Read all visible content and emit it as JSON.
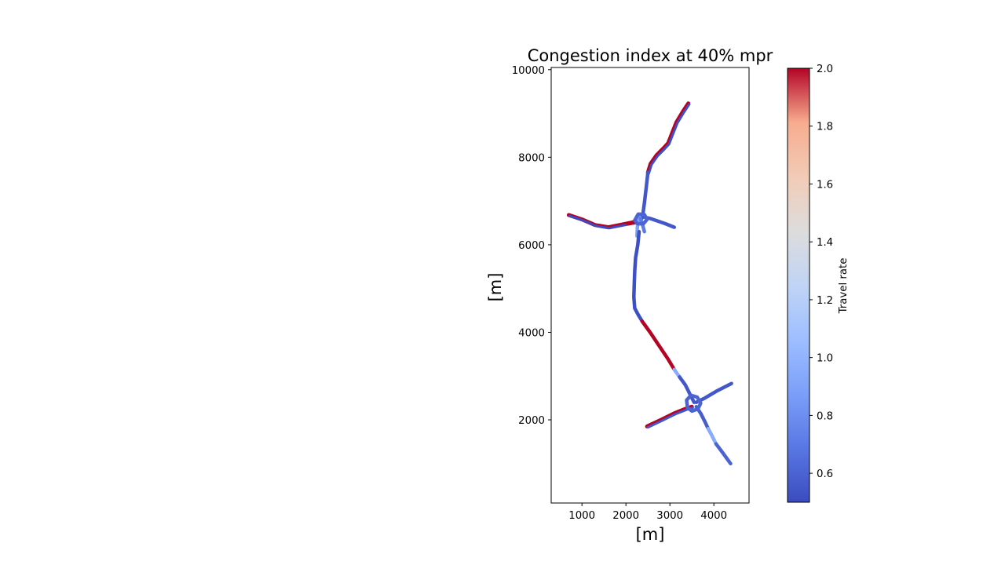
{
  "chart_data": {
    "type": "network-map",
    "title": "Congestion index at 40% mpr",
    "xlabel": "[m]",
    "ylabel": "[m]",
    "xlim": [
      300,
      4800
    ],
    "ylim": [
      100,
      10050
    ],
    "xticks": [
      1000,
      2000,
      3000,
      4000
    ],
    "yticks": [
      2000,
      4000,
      6000,
      8000,
      10000
    ],
    "grid": false,
    "colorbar": {
      "label": "Travel rate",
      "colormap": "coolwarm",
      "min": 0.5,
      "max": 2.0,
      "ticks": [
        0.6,
        0.8,
        1.0,
        1.2,
        1.4,
        1.6,
        1.8,
        2.0
      ],
      "tick_labels": [
        "0.6",
        "0.8",
        "1.0",
        "1.2",
        "1.4",
        "1.6",
        "1.8",
        "2.0"
      ]
    },
    "links": [
      {
        "points": [
          [
            3420,
            9230
          ],
          [
            3300,
            9050
          ],
          [
            3150,
            8800
          ],
          [
            3050,
            8550
          ],
          [
            2960,
            8320
          ],
          [
            2850,
            8200
          ],
          [
            2700,
            8050
          ],
          [
            2560,
            7850
          ],
          [
            2500,
            7650
          ]
        ],
        "value": 0.52,
        "edge_value": 2.0
      },
      {
        "points": [
          [
            2500,
            7650
          ],
          [
            2460,
            7300
          ],
          [
            2420,
            6950
          ],
          [
            2390,
            6720
          ],
          [
            2360,
            6600
          ]
        ],
        "value": 0.55
      },
      {
        "points": [
          [
            700,
            6680
          ],
          [
            1000,
            6580
          ],
          [
            1300,
            6450
          ],
          [
            1600,
            6400
          ],
          [
            1850,
            6450
          ],
          [
            2100,
            6500
          ],
          [
            2300,
            6550
          ]
        ],
        "value": 0.5,
        "edge_value": 2.0
      },
      {
        "points": [
          [
            2050,
            6480
          ],
          [
            2300,
            6520
          ]
        ],
        "value": 2.0
      },
      {
        "points": [
          [
            2380,
            6640
          ],
          [
            2550,
            6600
          ],
          [
            2700,
            6550
          ],
          [
            2900,
            6480
          ],
          [
            3100,
            6400
          ]
        ],
        "value": 0.55
      },
      {
        "points": [
          [
            2320,
            6700
          ],
          [
            2280,
            6550
          ],
          [
            2260,
            6400
          ],
          [
            2250,
            6200
          ]
        ],
        "value": 0.9
      },
      {
        "points": [
          [
            2330,
            6600
          ],
          [
            2380,
            6450
          ],
          [
            2420,
            6300
          ]
        ],
        "value": 0.7
      },
      {
        "points": [
          [
            2300,
            6300
          ],
          [
            2270,
            6000
          ],
          [
            2220,
            5700
          ],
          [
            2200,
            5400
          ],
          [
            2190,
            5100
          ],
          [
            2180,
            4800
          ],
          [
            2200,
            4550
          ],
          [
            2280,
            4400
          ],
          [
            2370,
            4250
          ]
        ],
        "value": 0.52
      },
      {
        "points": [
          [
            2370,
            4250
          ],
          [
            2550,
            4000
          ],
          [
            2750,
            3700
          ],
          [
            2950,
            3400
          ],
          [
            3100,
            3150
          ]
        ],
        "value": 2.0
      },
      {
        "points": [
          [
            3100,
            3150
          ],
          [
            3220,
            2980
          ]
        ],
        "value": 0.95
      },
      {
        "points": [
          [
            3220,
            2980
          ],
          [
            3350,
            2800
          ],
          [
            3450,
            2600
          ],
          [
            3550,
            2400
          ]
        ],
        "value": 0.55
      },
      {
        "points": [
          [
            2480,
            1850
          ],
          [
            2800,
            2000
          ],
          [
            3100,
            2150
          ],
          [
            3350,
            2250
          ],
          [
            3500,
            2300
          ]
        ],
        "value": 0.55,
        "edge_value": 2.0
      },
      {
        "points": [
          [
            3600,
            2400
          ],
          [
            3800,
            2500
          ],
          [
            4050,
            2650
          ],
          [
            4400,
            2830
          ]
        ],
        "value": 0.55
      },
      {
        "points": [
          [
            3600,
            2300
          ],
          [
            3700,
            2150
          ],
          [
            3800,
            1950
          ],
          [
            3870,
            1800
          ]
        ],
        "value": 0.58
      },
      {
        "points": [
          [
            3870,
            1800
          ],
          [
            3950,
            1650
          ],
          [
            4050,
            1450
          ]
        ],
        "value": 0.95
      },
      {
        "points": [
          [
            4050,
            1450
          ],
          [
            4200,
            1250
          ],
          [
            4380,
            1000
          ]
        ],
        "value": 0.6
      },
      {
        "points": [
          [
            3380,
            2450
          ],
          [
            3480,
            2560
          ],
          [
            3620,
            2520
          ],
          [
            3700,
            2380
          ],
          [
            3640,
            2250
          ],
          [
            3500,
            2200
          ],
          [
            3400,
            2280
          ],
          [
            3380,
            2450
          ]
        ],
        "value": 0.6
      },
      {
        "points": [
          [
            2200,
            6560
          ],
          [
            2280,
            6700
          ],
          [
            2420,
            6690
          ],
          [
            2480,
            6580
          ],
          [
            2400,
            6480
          ],
          [
            2260,
            6480
          ],
          [
            2200,
            6560
          ]
        ],
        "value": 0.6
      }
    ]
  }
}
